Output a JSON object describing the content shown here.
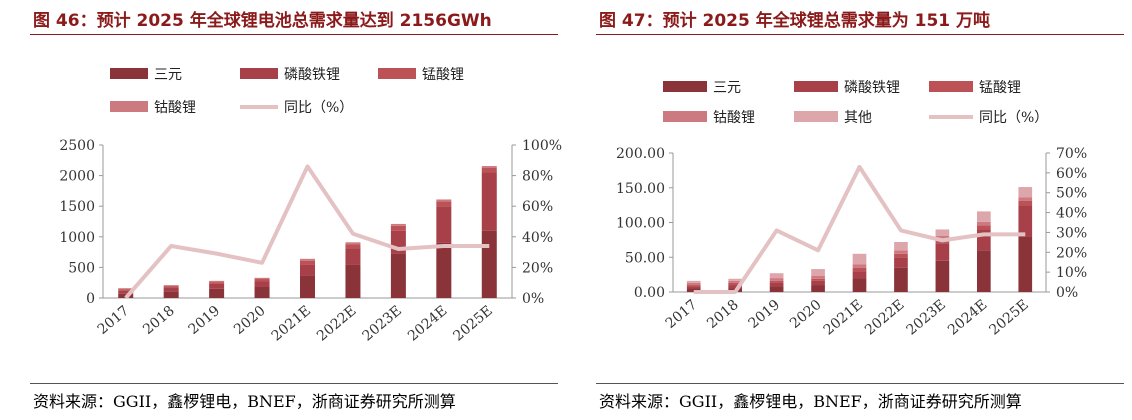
{
  "colors": {
    "title": "#8b1a1a",
    "ternary": "#8a3338",
    "lfp": "#a8404a",
    "lmo": "#bd5256",
    "lco": "#cc7a80",
    "other": "#dca6ab",
    "yoy": "#e4c2c3"
  },
  "figures": [
    {
      "title": "图 46：预计 2025 年全球锂电池总需求量达到 2156GWh",
      "source": "资料来源：GGII，鑫椤锂电，BNEF，浙商证券研究所测算"
    },
    {
      "title": "图 47：预计 2025 年全球锂总需求量为 151 万吨",
      "source": "资料来源：GGII，鑫椤锂电，BNEF，浙商证券研究所测算"
    }
  ],
  "chart_data": [
    {
      "type": "bar",
      "stacked": true,
      "categories": [
        "2017",
        "2018",
        "2019",
        "2020",
        "2021E",
        "2022E",
        "2023E",
        "2024E",
        "2025E"
      ],
      "series": [
        {
          "name": "三元",
          "values": [
            70,
            110,
            150,
            180,
            360,
            540,
            720,
            900,
            1100
          ]
        },
        {
          "name": "磷酸铁锂",
          "values": [
            50,
            60,
            80,
            90,
            190,
            270,
            380,
            600,
            950
          ]
        },
        {
          "name": "锰酸锂",
          "values": [
            25,
            25,
            30,
            40,
            60,
            70,
            80,
            80,
            80
          ]
        },
        {
          "name": "钴酸锂",
          "values": [
            15,
            15,
            20,
            20,
            30,
            30,
            30,
            30,
            26
          ]
        }
      ],
      "line_series": {
        "name": "同比（%）",
        "axis": "right",
        "values": [
          0,
          34,
          29,
          23,
          86,
          42,
          32,
          34,
          34
        ]
      },
      "left_axis": {
        "ylim": [
          0,
          2500
        ],
        "ticks": [
          "0",
          "500",
          "1000",
          "1500",
          "2000",
          "2500"
        ]
      },
      "right_axis": {
        "ylim": [
          0,
          100
        ],
        "ticks": [
          "0%",
          "20%",
          "40%",
          "60%",
          "80%",
          "100%"
        ]
      },
      "legend_placement": "top"
    },
    {
      "type": "bar",
      "stacked": true,
      "categories": [
        "2017",
        "2018",
        "2019",
        "2020",
        "2021E",
        "2022E",
        "2023E",
        "2024E",
        "2025E"
      ],
      "series": [
        {
          "name": "三元",
          "values": [
            5,
            5,
            8,
            10,
            20,
            35,
            45,
            60,
            80
          ]
        },
        {
          "name": "磷酸铁锂",
          "values": [
            3,
            5,
            5,
            6,
            10,
            15,
            25,
            30,
            45
          ]
        },
        {
          "name": "锰酸锂",
          "values": [
            2,
            3,
            3,
            3,
            5,
            5,
            6,
            6,
            6
          ]
        },
        {
          "name": "钴酸锂",
          "values": [
            3,
            3,
            4,
            4,
            5,
            5,
            5,
            5,
            5
          ]
        },
        {
          "name": "其他",
          "values": [
            3,
            3,
            7,
            10,
            15,
            12,
            9,
            15,
            15
          ]
        }
      ],
      "line_series": {
        "name": "同比（%）",
        "axis": "right",
        "values": [
          0,
          0,
          31,
          21,
          63,
          31,
          26,
          29,
          29
        ]
      },
      "left_axis": {
        "ylim": [
          0,
          200
        ],
        "ticks": [
          "0.00",
          "50.00",
          "100.00",
          "150.00",
          "200.00"
        ]
      },
      "right_axis": {
        "ylim": [
          0,
          70
        ],
        "ticks": [
          "0%",
          "10%",
          "20%",
          "30%",
          "40%",
          "50%",
          "60%",
          "70%"
        ]
      },
      "legend_placement": "top"
    }
  ]
}
